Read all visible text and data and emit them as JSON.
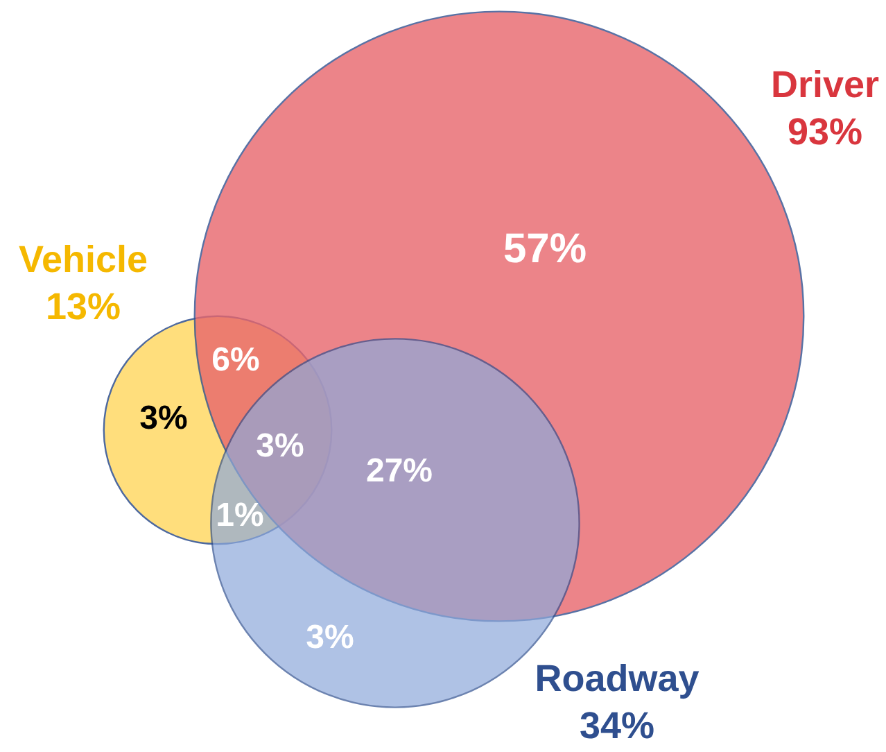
{
  "chart_data": {
    "type": "other",
    "categories": [
      "Driver",
      "Vehicle",
      "Roadway"
    ],
    "values": [
      93,
      13,
      34
    ],
    "value_labels": [
      "93%",
      "13%",
      "34%"
    ],
    "colors": [
      "#d9363e",
      "#f5b800",
      "#2f4f8f"
    ],
    "annotations": [
      "57%",
      "6%",
      "3%",
      "3%",
      "27%",
      "1%",
      "3%"
    ]
  }
}
